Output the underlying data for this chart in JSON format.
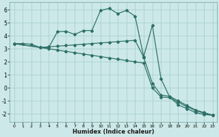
{
  "xlabel": "Humidex (Indice chaleur)",
  "background_color": "#cce8e8",
  "grid_color": "#aad0d0",
  "line_color": "#2d7068",
  "xlim": [
    -0.5,
    23.5
  ],
  "ylim": [
    -2.6,
    6.6
  ],
  "xticks": [
    0,
    1,
    2,
    3,
    4,
    5,
    6,
    7,
    8,
    9,
    10,
    11,
    12,
    13,
    14,
    15,
    16,
    17,
    18,
    19,
    20,
    21,
    22,
    23
  ],
  "yticks": [
    -2,
    -1,
    0,
    1,
    2,
    3,
    4,
    5,
    6
  ],
  "series1_x": [
    0,
    1,
    2,
    3,
    4,
    5,
    6,
    7,
    8,
    9,
    10,
    11,
    12,
    13,
    14,
    15,
    16,
    17,
    18,
    19,
    20,
    21,
    22,
    23
  ],
  "series1_y": [
    3.4,
    3.4,
    3.35,
    3.1,
    3.1,
    4.3,
    4.35,
    4.1,
    4.4,
    4.4,
    5.95,
    6.1,
    5.7,
    5.95,
    5.5,
    2.4,
    4.8,
    0.7,
    -0.7,
    -1.3,
    -1.6,
    -1.9,
    -2.05,
    -2.1
  ],
  "series2_x": [
    0,
    3,
    4,
    5,
    6,
    7,
    8,
    9,
    10,
    11,
    12,
    13,
    14,
    15,
    16,
    17,
    18,
    19,
    20,
    21,
    22,
    23
  ],
  "series2_y": [
    3.4,
    3.1,
    3.15,
    3.2,
    3.25,
    3.3,
    3.35,
    3.4,
    3.45,
    3.5,
    3.55,
    3.6,
    3.65,
    2.35,
    0.35,
    -0.55,
    -0.65,
    -1.0,
    -1.35,
    -1.7,
    -1.9,
    -2.1
  ],
  "series3_x": [
    0,
    3,
    4,
    5,
    6,
    7,
    8,
    9,
    10,
    11,
    12,
    13,
    14,
    15,
    16,
    17,
    18,
    19,
    20,
    21,
    22,
    23
  ],
  "series3_y": [
    3.4,
    3.1,
    3.0,
    2.9,
    2.8,
    2.7,
    2.6,
    2.5,
    2.4,
    2.3,
    2.2,
    2.1,
    2.0,
    1.9,
    0.0,
    -0.7,
    -0.75,
    -1.1,
    -1.45,
    -1.75,
    -1.95,
    -2.1
  ],
  "marker": "D",
  "markersize": 2.0,
  "linewidth": 0.9
}
